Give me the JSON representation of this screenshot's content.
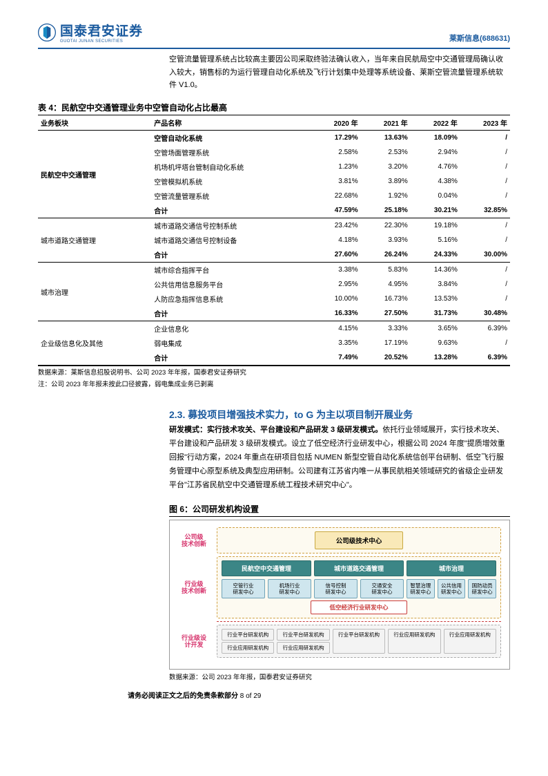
{
  "header": {
    "logo_cn": "国泰君安证券",
    "logo_en": "GUOTAI JUNAN SECURITIES",
    "doc_title": "莱斯信息(688631)"
  },
  "intro_para": "空管流量管理系统占比较高主要因公司采取终验法确认收入，当年来自民航局空中交通管理局确认收入较大，销售标的为运行管理自动化系统及飞行计划集中处理等系统设备、莱斯空管流量管理系统软件 V1.0。",
  "table4": {
    "title": "表 4：民航空中交通管理业务中空管自动化占比最高",
    "columns": [
      "业务板块",
      "产品名称",
      "2020 年",
      "2021 年",
      "2022 年",
      "2023 年"
    ],
    "sections": [
      {
        "block": "民航空中交通管理",
        "rows": [
          [
            "空管自动化系统",
            "17.29%",
            "13.63%",
            "18.09%",
            "/"
          ],
          [
            "空管场面管理系统",
            "2.58%",
            "2.53%",
            "2.94%",
            "/"
          ],
          [
            "机场机坪塔台管制自动化系统",
            "1.23%",
            "3.20%",
            "4.76%",
            "/"
          ],
          [
            "空管模拟机系统",
            "3.81%",
            "3.89%",
            "4.38%",
            "/"
          ],
          [
            "空管流量管理系统",
            "22.68%",
            "1.92%",
            "0.04%",
            "/"
          ]
        ],
        "subtotal": [
          "合计",
          "47.59%",
          "25.18%",
          "30.21%",
          "32.85%"
        ]
      },
      {
        "block": "城市道路交通管理",
        "rows": [
          [
            "城市道路交通信号控制系统",
            "23.42%",
            "22.30%",
            "19.18%",
            "/"
          ],
          [
            "城市道路交通信号控制设备",
            "4.18%",
            "3.93%",
            "5.16%",
            "/"
          ]
        ],
        "subtotal": [
          "合计",
          "27.60%",
          "26.24%",
          "24.33%",
          "30.00%"
        ]
      },
      {
        "block": "城市治理",
        "rows": [
          [
            "城市综合指挥平台",
            "3.38%",
            "5.83%",
            "14.36%",
            "/"
          ],
          [
            "公共信用信息服务平台",
            "2.95%",
            "4.95%",
            "3.84%",
            "/"
          ],
          [
            "人防应急指挥信息系统",
            "10.00%",
            "16.73%",
            "13.53%",
            "/"
          ]
        ],
        "subtotal": [
          "合计",
          "16.33%",
          "27.50%",
          "31.73%",
          "30.48%"
        ]
      },
      {
        "block": "企业级信息化及其他",
        "rows": [
          [
            "企业信息化",
            "4.15%",
            "3.33%",
            "3.65%",
            "6.39%"
          ],
          [
            "弱电集成",
            "3.35%",
            "17.19%",
            "9.63%",
            "/"
          ]
        ],
        "subtotal": [
          "合计",
          "7.49%",
          "20.52%",
          "13.28%",
          "6.39%"
        ]
      }
    ],
    "source": "数据来源：莱斯信息招股说明书、公司 2023 年年报，国泰君安证券研究",
    "note": "注：公司 2023 年年报未按此口径披露，弱电集成业务已剥离"
  },
  "section23": {
    "heading": "2.3. 募投项目增强技术实力，to G 为主以项目制开展业务",
    "para_lead": "研发模式：实行技术攻关、平台建设和产品研发 3 级研发模式。",
    "para_body": "依托行业领域展开，实行技术攻关、平台建设和产品研发 3 级研发模式。设立了低空经济行业研发中心，根据公司 2024 年度\"提质增效重回报\"行动方案，2024 年重点在研项目包括 NUMEN 新型空管自动化系统信创平台研制、低空飞行服务管理中心原型系统及典型应用研制。公司建有江苏省内唯一从事民航相关领域研究的省级企业研发平台\"江苏省民航空中交通管理系统工程技术研究中心\"。"
  },
  "figure6": {
    "title": "图 6：公司研发机构设置",
    "level1_label": "公司级\n技术创新",
    "top_node": "公司级技术中心",
    "level2_label": "行业级\n技术创新",
    "green_nodes": [
      "民航空中交通管理",
      "城市道路交通管理",
      "城市治理"
    ],
    "blue_nodes_a": [
      "空管行业\n研发中心",
      "机场行业\n研发中心"
    ],
    "blue_nodes_b": [
      "信号控制\n研发中心",
      "交通安全\n研发中心"
    ],
    "blue_nodes_c": [
      "智慧治理\n研发中心",
      "公共信用\n研发中心",
      "国防动员\n研发中心"
    ],
    "red_node": "低空经济行业研发中心",
    "level3_label": "行业级设\n计开发",
    "grey_groups": [
      [
        "行业平台研发机构",
        "行业应用研发机构"
      ],
      [
        "行业平台研发机构",
        "行业应用研发机构"
      ],
      [
        "行业平台研发机构"
      ],
      [
        "行业应用研发机构"
      ],
      [
        "行业应用研发机构"
      ]
    ],
    "source": "数据来源：公司 2023 年年报，国泰君安证券研究"
  },
  "footer": {
    "text": "请务必阅读正文之后的免责条款部分",
    "page": "8 of 29"
  }
}
